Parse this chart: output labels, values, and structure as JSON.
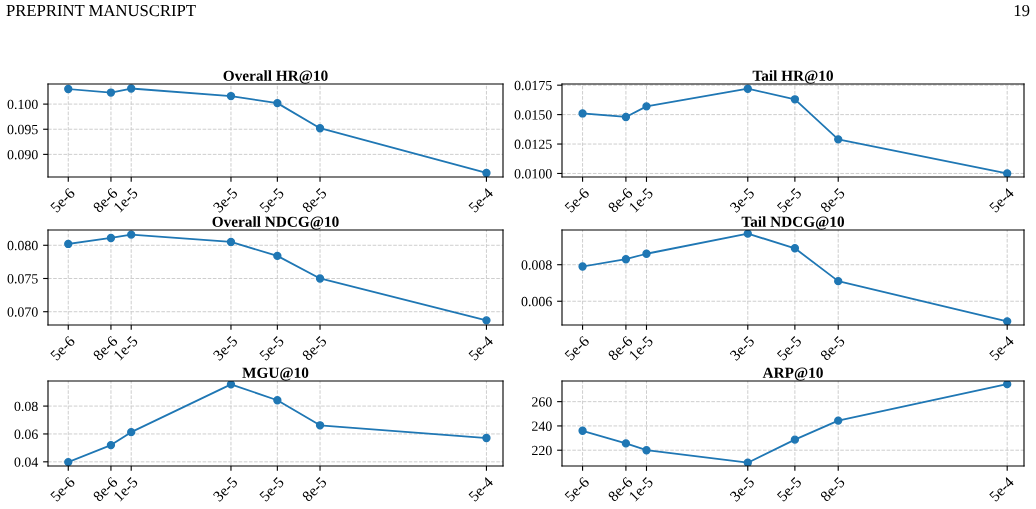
{
  "chart_data": [
    {
      "type": "line",
      "title": "Overall HR@10",
      "annotations": [
        "PREPRINT MANUSCRIPT",
        "19"
      ],
      "x": [
        5e-06,
        8e-06,
        1e-05,
        3e-05,
        5e-05,
        8e-05,
        0.0005
      ],
      "log": "x",
      "xlim": [
        4e-06,
        0.0006
      ],
      "xticks": [
        {
          "value": 5e-06,
          "label": "5e-6"
        },
        {
          "value": 8e-06,
          "label": "8e-6"
        },
        {
          "value": 1e-05,
          "label": "1e-5"
        },
        {
          "value": 3e-05,
          "label": "3e-5"
        },
        {
          "value": 5e-05,
          "label": "5e-5"
        },
        {
          "value": 8e-05,
          "label": "8e-5"
        },
        {
          "value": 0.0005,
          "label": "5e-4"
        }
      ],
      "ylim": [
        0.0855,
        0.104
      ],
      "yticks": [
        {
          "value": 0.09,
          "label": "0.090"
        },
        {
          "value": 0.095,
          "label": "0.095"
        },
        {
          "value": 0.1,
          "label": "0.100"
        }
      ],
      "grid": true,
      "marker": "circle",
      "line_style": "solid",
      "series": [
        {
          "color": "#1f77b4",
          "values": [
            0.103,
            0.1023,
            0.1031,
            0.1016,
            0.1002,
            0.0952,
            0.0863
          ]
        }
      ]
    },
    {
      "type": "line",
      "title": "Tail HR@10",
      "x": [
        5e-06,
        8e-06,
        1e-05,
        3e-05,
        5e-05,
        8e-05,
        0.0005
      ],
      "log": "x",
      "xlim": [
        4e-06,
        0.0006
      ],
      "xticks": [
        {
          "value": 5e-06,
          "label": "5e-6"
        },
        {
          "value": 8e-06,
          "label": "8e-6"
        },
        {
          "value": 1e-05,
          "label": "1e-5"
        },
        {
          "value": 3e-05,
          "label": "3e-5"
        },
        {
          "value": 5e-05,
          "label": "5e-5"
        },
        {
          "value": 8e-05,
          "label": "8e-5"
        },
        {
          "value": 0.0005,
          "label": "5e-4"
        }
      ],
      "ylim": [
        0.0097,
        0.0176
      ],
      "yticks": [
        {
          "value": 0.01,
          "label": "0.0100"
        },
        {
          "value": 0.0125,
          "label": "0.0125"
        },
        {
          "value": 0.015,
          "label": "0.0150"
        },
        {
          "value": 0.0175,
          "label": "0.0175"
        }
      ],
      "grid": true,
      "marker": "circle",
      "line_style": "solid",
      "series": [
        {
          "color": "#1f77b4",
          "values": [
            0.0151,
            0.0148,
            0.0157,
            0.0172,
            0.0163,
            0.0129,
            0.01
          ]
        }
      ]
    },
    {
      "type": "line",
      "title": "Overall NDCG@10",
      "x": [
        5e-06,
        8e-06,
        1e-05,
        3e-05,
        5e-05,
        8e-05,
        0.0005
      ],
      "log": "x",
      "xlim": [
        4e-06,
        0.0006
      ],
      "xticks": [
        {
          "value": 5e-06,
          "label": "5e-6"
        },
        {
          "value": 8e-06,
          "label": "8e-6"
        },
        {
          "value": 1e-05,
          "label": "1e-5"
        },
        {
          "value": 3e-05,
          "label": "3e-5"
        },
        {
          "value": 5e-05,
          "label": "5e-5"
        },
        {
          "value": 8e-05,
          "label": "8e-5"
        },
        {
          "value": 0.0005,
          "label": "5e-4"
        }
      ],
      "ylim": [
        0.068,
        0.0823
      ],
      "yticks": [
        {
          "value": 0.07,
          "label": "0.070"
        },
        {
          "value": 0.075,
          "label": "0.075"
        },
        {
          "value": 0.08,
          "label": "0.080"
        }
      ],
      "grid": true,
      "marker": "circle",
      "line_style": "solid",
      "series": [
        {
          "color": "#1f77b4",
          "values": [
            0.0802,
            0.0811,
            0.0816,
            0.0805,
            0.0784,
            0.075,
            0.0687
          ]
        }
      ]
    },
    {
      "type": "line",
      "title": "Tail NDCG@10",
      "x": [
        5e-06,
        8e-06,
        1e-05,
        3e-05,
        5e-05,
        8e-05,
        0.0005
      ],
      "log": "x",
      "xlim": [
        4e-06,
        0.0006
      ],
      "xticks": [
        {
          "value": 5e-06,
          "label": "5e-6"
        },
        {
          "value": 8e-06,
          "label": "8e-6"
        },
        {
          "value": 1e-05,
          "label": "1e-5"
        },
        {
          "value": 3e-05,
          "label": "3e-5"
        },
        {
          "value": 5e-05,
          "label": "5e-5"
        },
        {
          "value": 8e-05,
          "label": "8e-5"
        },
        {
          "value": 0.0005,
          "label": "5e-4"
        }
      ],
      "ylim": [
        0.0047,
        0.0099
      ],
      "yticks": [
        {
          "value": 0.006,
          "label": "0.006"
        },
        {
          "value": 0.008,
          "label": "0.008"
        }
      ],
      "grid": true,
      "marker": "circle",
      "line_style": "solid",
      "series": [
        {
          "color": "#1f77b4",
          "values": [
            0.0079,
            0.0083,
            0.0086,
            0.0097,
            0.0089,
            0.0071,
            0.0049
          ]
        }
      ]
    },
    {
      "type": "line",
      "title": "MGU@10",
      "x": [
        5e-06,
        8e-06,
        1e-05,
        3e-05,
        5e-05,
        8e-05,
        0.0005
      ],
      "log": "x",
      "xlim": [
        4e-06,
        0.0006
      ],
      "xticks": [
        {
          "value": 5e-06,
          "label": "5e-6"
        },
        {
          "value": 8e-06,
          "label": "8e-6"
        },
        {
          "value": 1e-05,
          "label": "1e-5"
        },
        {
          "value": 3e-05,
          "label": "3e-5"
        },
        {
          "value": 5e-05,
          "label": "5e-5"
        },
        {
          "value": 8e-05,
          "label": "8e-5"
        },
        {
          "value": 0.0005,
          "label": "5e-4"
        }
      ],
      "ylim": [
        0.037,
        0.098
      ],
      "yticks": [
        {
          "value": 0.04,
          "label": "0.04"
        },
        {
          "value": 0.06,
          "label": "0.06"
        },
        {
          "value": 0.08,
          "label": "0.08"
        }
      ],
      "grid": true,
      "marker": "circle",
      "line_style": "solid",
      "series": [
        {
          "color": "#1f77b4",
          "values": [
            0.0398,
            0.052,
            0.0613,
            0.0956,
            0.0842,
            0.0662,
            0.0571
          ]
        }
      ]
    },
    {
      "type": "line",
      "title": "ARP@10",
      "x": [
        5e-06,
        8e-06,
        1e-05,
        3e-05,
        5e-05,
        8e-05,
        0.0005
      ],
      "log": "x",
      "xlim": [
        4e-06,
        0.0006
      ],
      "xticks": [
        {
          "value": 5e-06,
          "label": "5e-6"
        },
        {
          "value": 8e-06,
          "label": "8e-6"
        },
        {
          "value": 1e-05,
          "label": "1e-5"
        },
        {
          "value": 3e-05,
          "label": "3e-5"
        },
        {
          "value": 5e-05,
          "label": "5e-5"
        },
        {
          "value": 8e-05,
          "label": "8e-5"
        },
        {
          "value": 0.0005,
          "label": "5e-4"
        }
      ],
      "ylim": [
        207,
        277
      ],
      "yticks": [
        220,
        240,
        260
      ],
      "grid": true,
      "marker": "circle",
      "line_style": "solid",
      "series": [
        {
          "color": "#1f77b4",
          "values": [
            236,
            225.6,
            220,
            209.7,
            228.7,
            244.4,
            274.4
          ]
        }
      ]
    }
  ]
}
